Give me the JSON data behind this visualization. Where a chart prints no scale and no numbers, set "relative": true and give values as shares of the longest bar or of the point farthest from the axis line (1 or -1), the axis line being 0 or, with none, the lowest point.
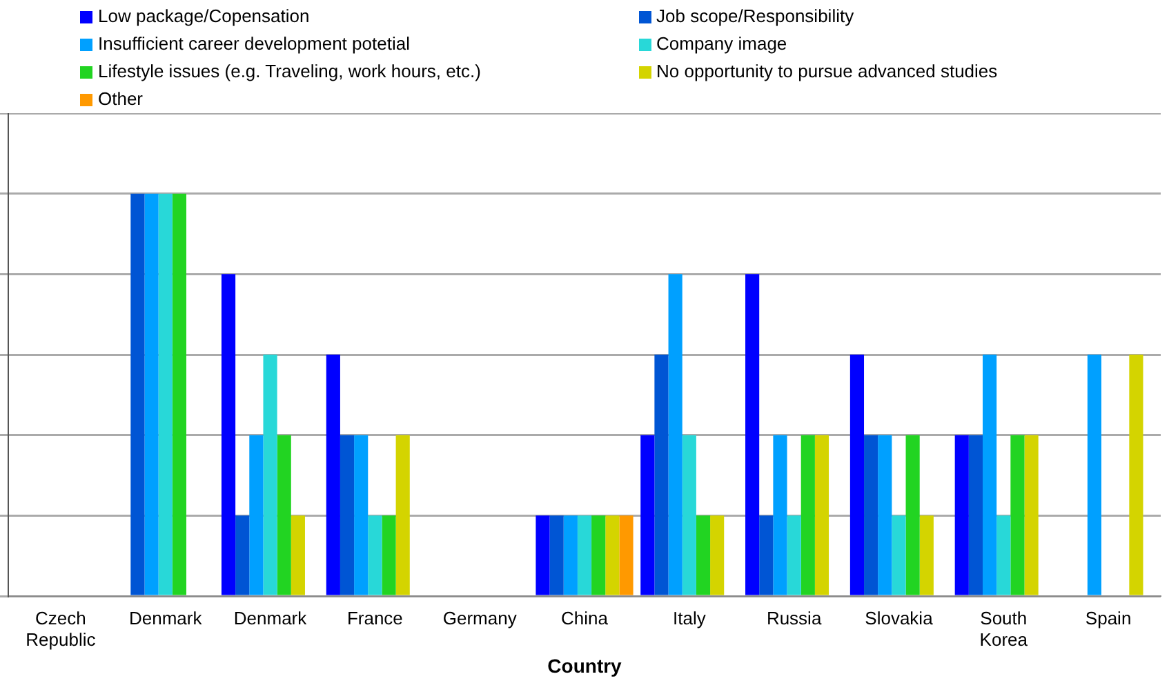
{
  "chart_data": {
    "type": "bar",
    "xlabel": "Country",
    "relative": true,
    "grid": "y",
    "legend": "top",
    "categories": [
      "Czech Republic",
      "Denmark",
      "Denmark",
      "France",
      "Germany",
      "China",
      "Italy",
      "Russia",
      "Slovakia",
      "South Korea",
      "Spain"
    ],
    "series": [
      {
        "name": "Low package/Copensation",
        "color": "#0000ff",
        "values": [
          0,
          0,
          0.8,
          0.6,
          0,
          0.2,
          0.4,
          0.8,
          0.6,
          0.4,
          0
        ]
      },
      {
        "name": "Job scope/Responsibility",
        "color": "#0055d4",
        "values": [
          0,
          1,
          0.2,
          0.4,
          0,
          0.2,
          0.6,
          0.2,
          0.4,
          0.4,
          0
        ]
      },
      {
        "name": "Insufficient career development potetial",
        "color": "#00a0ff",
        "values": [
          0,
          1,
          0.4,
          0.4,
          0,
          0.2,
          0.8,
          0.4,
          0.4,
          0.6,
          0.6
        ]
      },
      {
        "name": "Company image",
        "color": "#28d8d8",
        "values": [
          0,
          1,
          0.6,
          0.2,
          0,
          0.2,
          0.4,
          0.2,
          0.2,
          0.2,
          0
        ]
      },
      {
        "name": "Lifestyle issues (e.g. Traveling, work hours, etc.)",
        "color": "#22d422",
        "values": [
          0,
          1,
          0.4,
          0.2,
          0,
          0.2,
          0.2,
          0.4,
          0.4,
          0.4,
          0
        ]
      },
      {
        "name": "No opportunity to pursue advanced studies",
        "color": "#d4d400",
        "values": [
          0,
          0,
          0.2,
          0.4,
          0,
          0.2,
          0.2,
          0.4,
          0.2,
          0.4,
          0.6
        ]
      },
      {
        "name": "Other",
        "color": "#ff9900",
        "values": [
          0,
          0,
          0,
          0,
          0,
          0.2,
          0,
          0,
          0,
          0,
          0
        ]
      }
    ]
  }
}
